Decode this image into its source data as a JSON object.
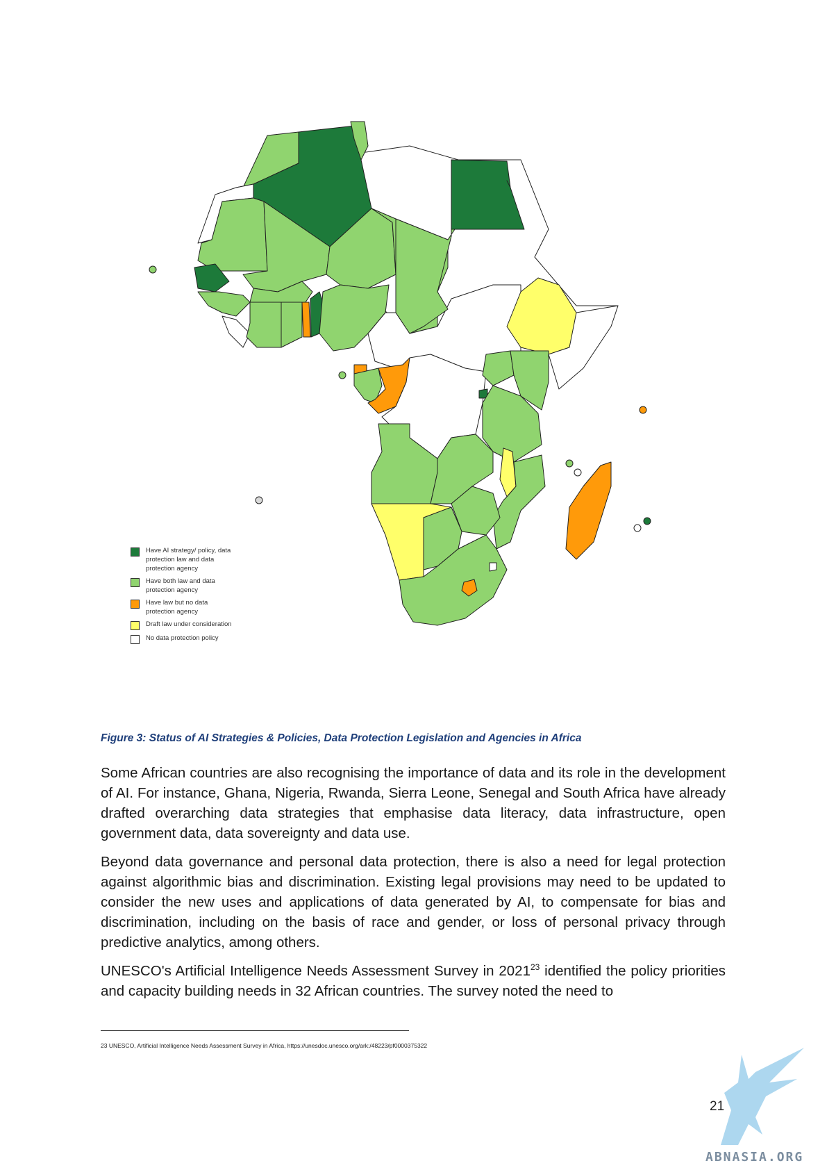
{
  "figure": {
    "legend": [
      {
        "label": "Have AI strategy/ policy, data protection law and data protection agency",
        "color": "#1d7a3a"
      },
      {
        "label": "Have both law and data protection agency",
        "color": "#90d46f"
      },
      {
        "label": "Have law but no data protection agency",
        "color": "#ff9a0a"
      },
      {
        "label": "Draft law under consideration",
        "color": "#ffff6a"
      },
      {
        "label": "No data protection policy",
        "color": "#ffffff"
      }
    ],
    "caption": "Figure 3: Status of AI Strategies & Policies, Data Protection Legislation and Agencies in Africa"
  },
  "body": {
    "p1": "Some African countries are also recognising the importance of data and its role in the development of AI. For instance, Ghana, Nigeria, Rwanda, Sierra Leone, Senegal and South Africa have already drafted overarching data strategies that emphasise data literacy, data infrastructure, open government data, data sovereignty and data use.",
    "p2": "Beyond data governance and personal data protection, there is also a need for legal protection against algorithmic bias and discrimination. Existing legal provisions may need to be updated to consider the new uses and applications of data generated by AI, to compensate for bias and discrimination, including on the basis of race and gender, or loss of personal privacy through predictive analytics, among others.",
    "p3_before": "UNESCO's Artificial Intelligence Needs Assessment Survey in 2021",
    "p3_sup": "23",
    "p3_after": " identified the policy priorities and capacity building needs in 32 African countries.  The survey noted the need to"
  },
  "footnote": "23 UNESCO, Artificial Intelligence Needs Assessment Survey in Africa, https://unesdoc.unesco.org/ark:/48223/pf0000375322",
  "page_number": "21",
  "logo_text": "ABNASIA.ORG"
}
